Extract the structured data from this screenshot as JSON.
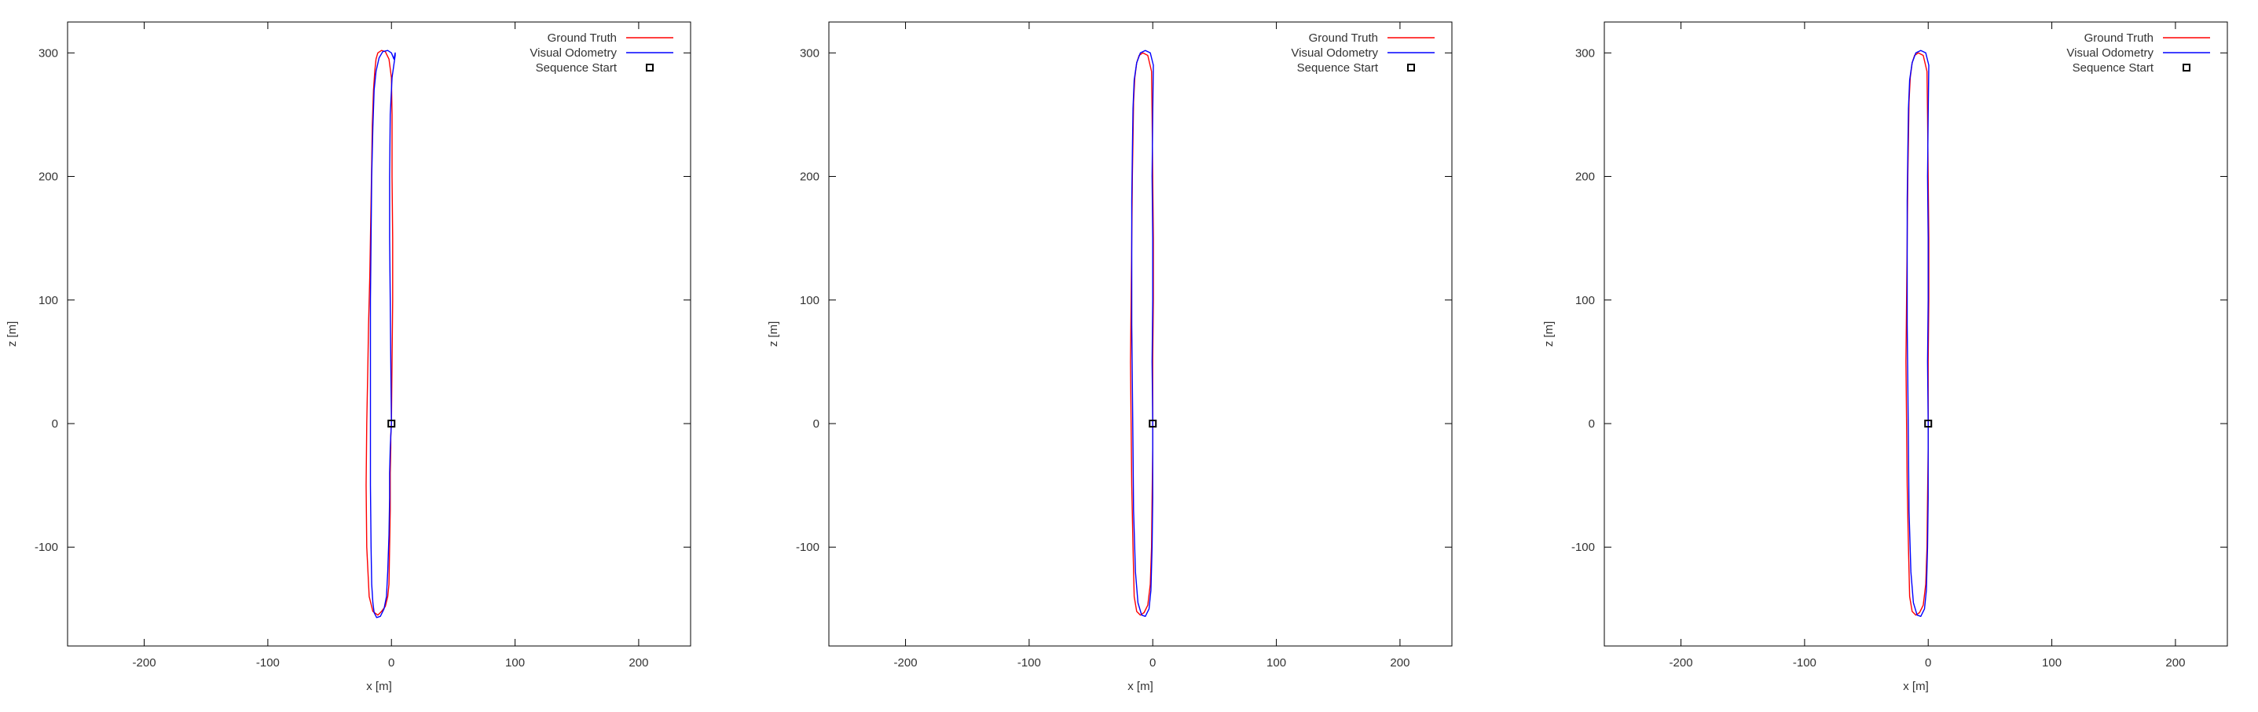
{
  "chart_data": [
    {
      "type": "line",
      "title": "",
      "xlabel": "x [m]",
      "ylabel": "z [m]",
      "xlim": [
        -262,
        242
      ],
      "ylim": [
        -180,
        325
      ],
      "xticks": [
        -200,
        -100,
        0,
        100,
        200
      ],
      "yticks": [
        -100,
        0,
        100,
        200,
        300
      ],
      "grid": false,
      "legend_position": "top-right",
      "series": [
        {
          "name": "Ground Truth",
          "color": "#ff0000",
          "x": [
            0,
            0.5,
            1,
            1,
            0.5,
            0.5,
            0,
            -2,
            -5,
            -8,
            -11,
            -12.5,
            -13.5,
            -14.5,
            -15.5,
            -16,
            -16.5,
            -17,
            -17.5,
            -18,
            -18.5,
            -19,
            -20,
            -20.5,
            -20,
            -18,
            -15,
            -11,
            -8,
            -5,
            -3,
            -2,
            -1.5,
            -1,
            -1,
            -0.5,
            -0.5,
            0
          ],
          "y": [
            0,
            50,
            100,
            150,
            200,
            250,
            280,
            295,
            301,
            302,
            300,
            295,
            285,
            270,
            240,
            210,
            180,
            150,
            120,
            100,
            80,
            50,
            0,
            -50,
            -100,
            -140,
            -152,
            -155,
            -152,
            -148,
            -140,
            -130,
            -100,
            -70,
            -40,
            -20,
            -10,
            0
          ]
        },
        {
          "name": "Visual Odometry",
          "color": "#0000ff",
          "x": [
            0,
            -0.5,
            -1,
            -1.5,
            -1.5,
            -1,
            0.5,
            3,
            3,
            2,
            0,
            -3,
            -7,
            -10,
            -12.5,
            -14,
            -15,
            -16,
            -16.5,
            -17,
            -17,
            -17,
            -17,
            -16.5,
            -16,
            -15,
            -14,
            -12,
            -9,
            -6,
            -4,
            -3,
            -2,
            -1.5,
            -1.5,
            -1,
            -0.5,
            0
          ],
          "y": [
            0,
            50,
            100,
            150,
            200,
            250,
            280,
            298,
            300,
            295,
            300,
            302,
            301,
            296,
            285,
            270,
            240,
            200,
            150,
            100,
            50,
            0,
            -50,
            -100,
            -130,
            -145,
            -153,
            -157,
            -156,
            -150,
            -140,
            -120,
            -90,
            -60,
            -40,
            -20,
            -10,
            0
          ]
        },
        {
          "name": "Sequence Start",
          "color": "#000000",
          "x": [
            0
          ],
          "y": [
            0
          ]
        }
      ]
    },
    {
      "type": "line",
      "title": "",
      "xlabel": "x [m]",
      "ylabel": "z [m]",
      "xlim": [
        -262,
        242
      ],
      "ylim": [
        -180,
        325
      ],
      "xticks": [
        -200,
        -100,
        0,
        100,
        200
      ],
      "yticks": [
        -100,
        0,
        100,
        200,
        300
      ],
      "grid": false,
      "legend_position": "top-right",
      "series": [
        {
          "name": "Ground Truth",
          "color": "#ff0000",
          "x": [
            0,
            0,
            0.5,
            0.5,
            0,
            -0.5,
            -1,
            -4,
            -8,
            -11,
            -13,
            -14.5,
            -15.5,
            -16,
            -16.5,
            -17,
            -17.5,
            -18,
            -17.5,
            -17,
            -16,
            -15,
            -13,
            -10,
            -7,
            -4,
            -2,
            -1,
            -0.5,
            0,
            0
          ],
          "y": [
            0,
            50,
            100,
            150,
            200,
            250,
            285,
            298,
            300,
            298,
            292,
            280,
            260,
            230,
            200,
            150,
            100,
            50,
            0,
            -50,
            -100,
            -140,
            -152,
            -155,
            -153,
            -147,
            -130,
            -100,
            -60,
            -20,
            0
          ]
        },
        {
          "name": "Visual Odometry",
          "color": "#0000ff",
          "x": [
            0,
            -0.5,
            0,
            0,
            -0.5,
            0,
            0.5,
            -2,
            -6,
            -10,
            -13,
            -15,
            -16,
            -16.5,
            -17,
            -17,
            -17,
            -16.5,
            -16,
            -15.5,
            -14,
            -12,
            -9,
            -6,
            -3,
            -1.5,
            -0.5,
            0,
            0,
            0
          ],
          "y": [
            0,
            50,
            100,
            150,
            200,
            250,
            290,
            300,
            302,
            300,
            292,
            278,
            255,
            220,
            180,
            130,
            80,
            30,
            -20,
            -70,
            -120,
            -145,
            -155,
            -156,
            -150,
            -135,
            -100,
            -60,
            -20,
            0
          ]
        },
        {
          "name": "Sequence Start",
          "color": "#000000",
          "x": [
            0
          ],
          "y": [
            0
          ]
        }
      ]
    },
    {
      "type": "line",
      "title": "",
      "xlabel": "x [m]",
      "ylabel": "z [m]",
      "xlim": [
        -262,
        242
      ],
      "ylim": [
        -180,
        325
      ],
      "xticks": [
        -200,
        -100,
        0,
        100,
        200
      ],
      "yticks": [
        -100,
        0,
        100,
        200,
        300
      ],
      "grid": false,
      "legend_position": "top-right",
      "series": [
        {
          "name": "Ground Truth",
          "color": "#ff0000",
          "x": [
            0,
            0,
            0.5,
            0.5,
            0,
            -0.5,
            -1,
            -4,
            -8,
            -11,
            -13,
            -14.5,
            -15.5,
            -16,
            -16.5,
            -17,
            -17.5,
            -18,
            -17.5,
            -17,
            -16,
            -15,
            -13,
            -10,
            -7,
            -4,
            -2,
            -1,
            -0.5,
            0,
            0
          ],
          "y": [
            0,
            50,
            100,
            150,
            200,
            250,
            285,
            298,
            300,
            298,
            292,
            280,
            260,
            230,
            200,
            150,
            100,
            50,
            0,
            -50,
            -100,
            -140,
            -152,
            -155,
            -153,
            -147,
            -130,
            -100,
            -60,
            -20,
            0
          ]
        },
        {
          "name": "Visual Odometry",
          "color": "#0000ff",
          "x": [
            0,
            -0.5,
            0,
            0,
            -0.5,
            0,
            0.5,
            -2,
            -6,
            -10,
            -13,
            -15,
            -16,
            -16.5,
            -17,
            -17,
            -17,
            -16.5,
            -16,
            -15.5,
            -14,
            -12,
            -9,
            -6,
            -3,
            -1.5,
            -0.5,
            0,
            0,
            0
          ],
          "y": [
            0,
            50,
            100,
            150,
            200,
            250,
            290,
            300,
            302,
            300,
            292,
            278,
            255,
            220,
            180,
            130,
            80,
            30,
            -20,
            -70,
            -120,
            -145,
            -155,
            -156,
            -150,
            -135,
            -100,
            -60,
            -20,
            0
          ]
        },
        {
          "name": "Sequence Start",
          "color": "#000000",
          "x": [
            0
          ],
          "y": [
            0
          ]
        }
      ]
    }
  ]
}
